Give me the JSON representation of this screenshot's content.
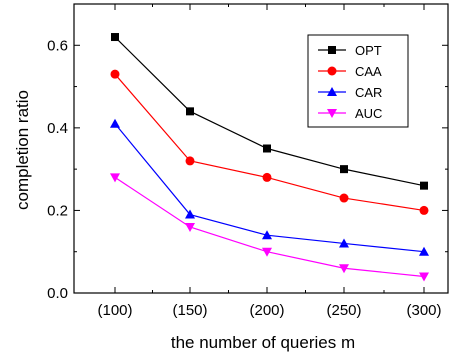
{
  "chart_data": {
    "type": "line",
    "categories": [
      "(100)",
      "(150)",
      "(200)",
      "(250)",
      "(300)"
    ],
    "series": [
      {
        "name": "OPT",
        "values": [
          0.62,
          0.44,
          0.35,
          0.3,
          0.26
        ],
        "color": "#000000",
        "marker": "square"
      },
      {
        "name": "CAA",
        "values": [
          0.53,
          0.32,
          0.28,
          0.23,
          0.2
        ],
        "color": "#ff0000",
        "marker": "circle"
      },
      {
        "name": "CAR",
        "values": [
          0.41,
          0.19,
          0.14,
          0.12,
          0.1
        ],
        "color": "#0000ff",
        "marker": "triangle-up"
      },
      {
        "name": "AUC",
        "values": [
          0.28,
          0.16,
          0.1,
          0.06,
          0.04
        ],
        "color": "#ff00ff",
        "marker": "triangle-down"
      }
    ],
    "xlabel": "the number of queries m",
    "ylabel": "completion ratio",
    "ylim": [
      0,
      0.7
    ],
    "yticks": [
      0.0,
      0.2,
      0.4,
      0.6
    ],
    "ytick_labels": [
      "0.0",
      "0.2",
      "0.4",
      "0.6"
    ],
    "grid": false,
    "legend_position": "top-right"
  }
}
